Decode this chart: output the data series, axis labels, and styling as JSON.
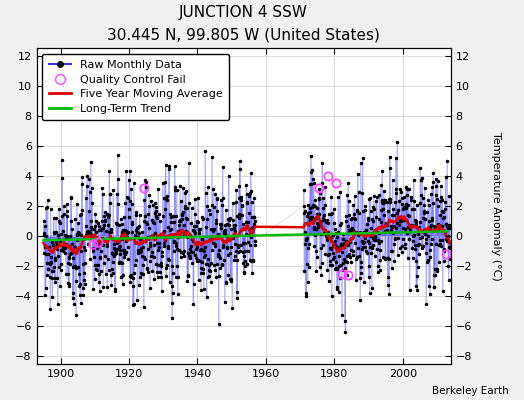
{
  "title": "JUNCTION 4 SSW",
  "subtitle": "30.445 N, 99.805 W (United States)",
  "ylabel": "Temperature Anomaly (°C)",
  "credit": "Berkeley Earth",
  "year_start": 1895,
  "year_end": 2013,
  "gap_start": 1957,
  "gap_end": 1971,
  "ylim": [
    -8.5,
    12.5
  ],
  "yticks": [
    -8,
    -6,
    -4,
    -2,
    0,
    2,
    4,
    6,
    8,
    10,
    12
  ],
  "xticks": [
    1900,
    1920,
    1940,
    1960,
    1980,
    2000
  ],
  "bg_color": "#f0f0f0",
  "plot_bg_color": "#ffffff",
  "raw_line_color": "#3333ff",
  "raw_dot_color": "#000000",
  "qc_fail_color": "#ff44ff",
  "moving_avg_color": "#dd0000",
  "trend_color": "#00bb00",
  "title_fontsize": 11,
  "subtitle_fontsize": 8.5,
  "legend_fontsize": 8
}
